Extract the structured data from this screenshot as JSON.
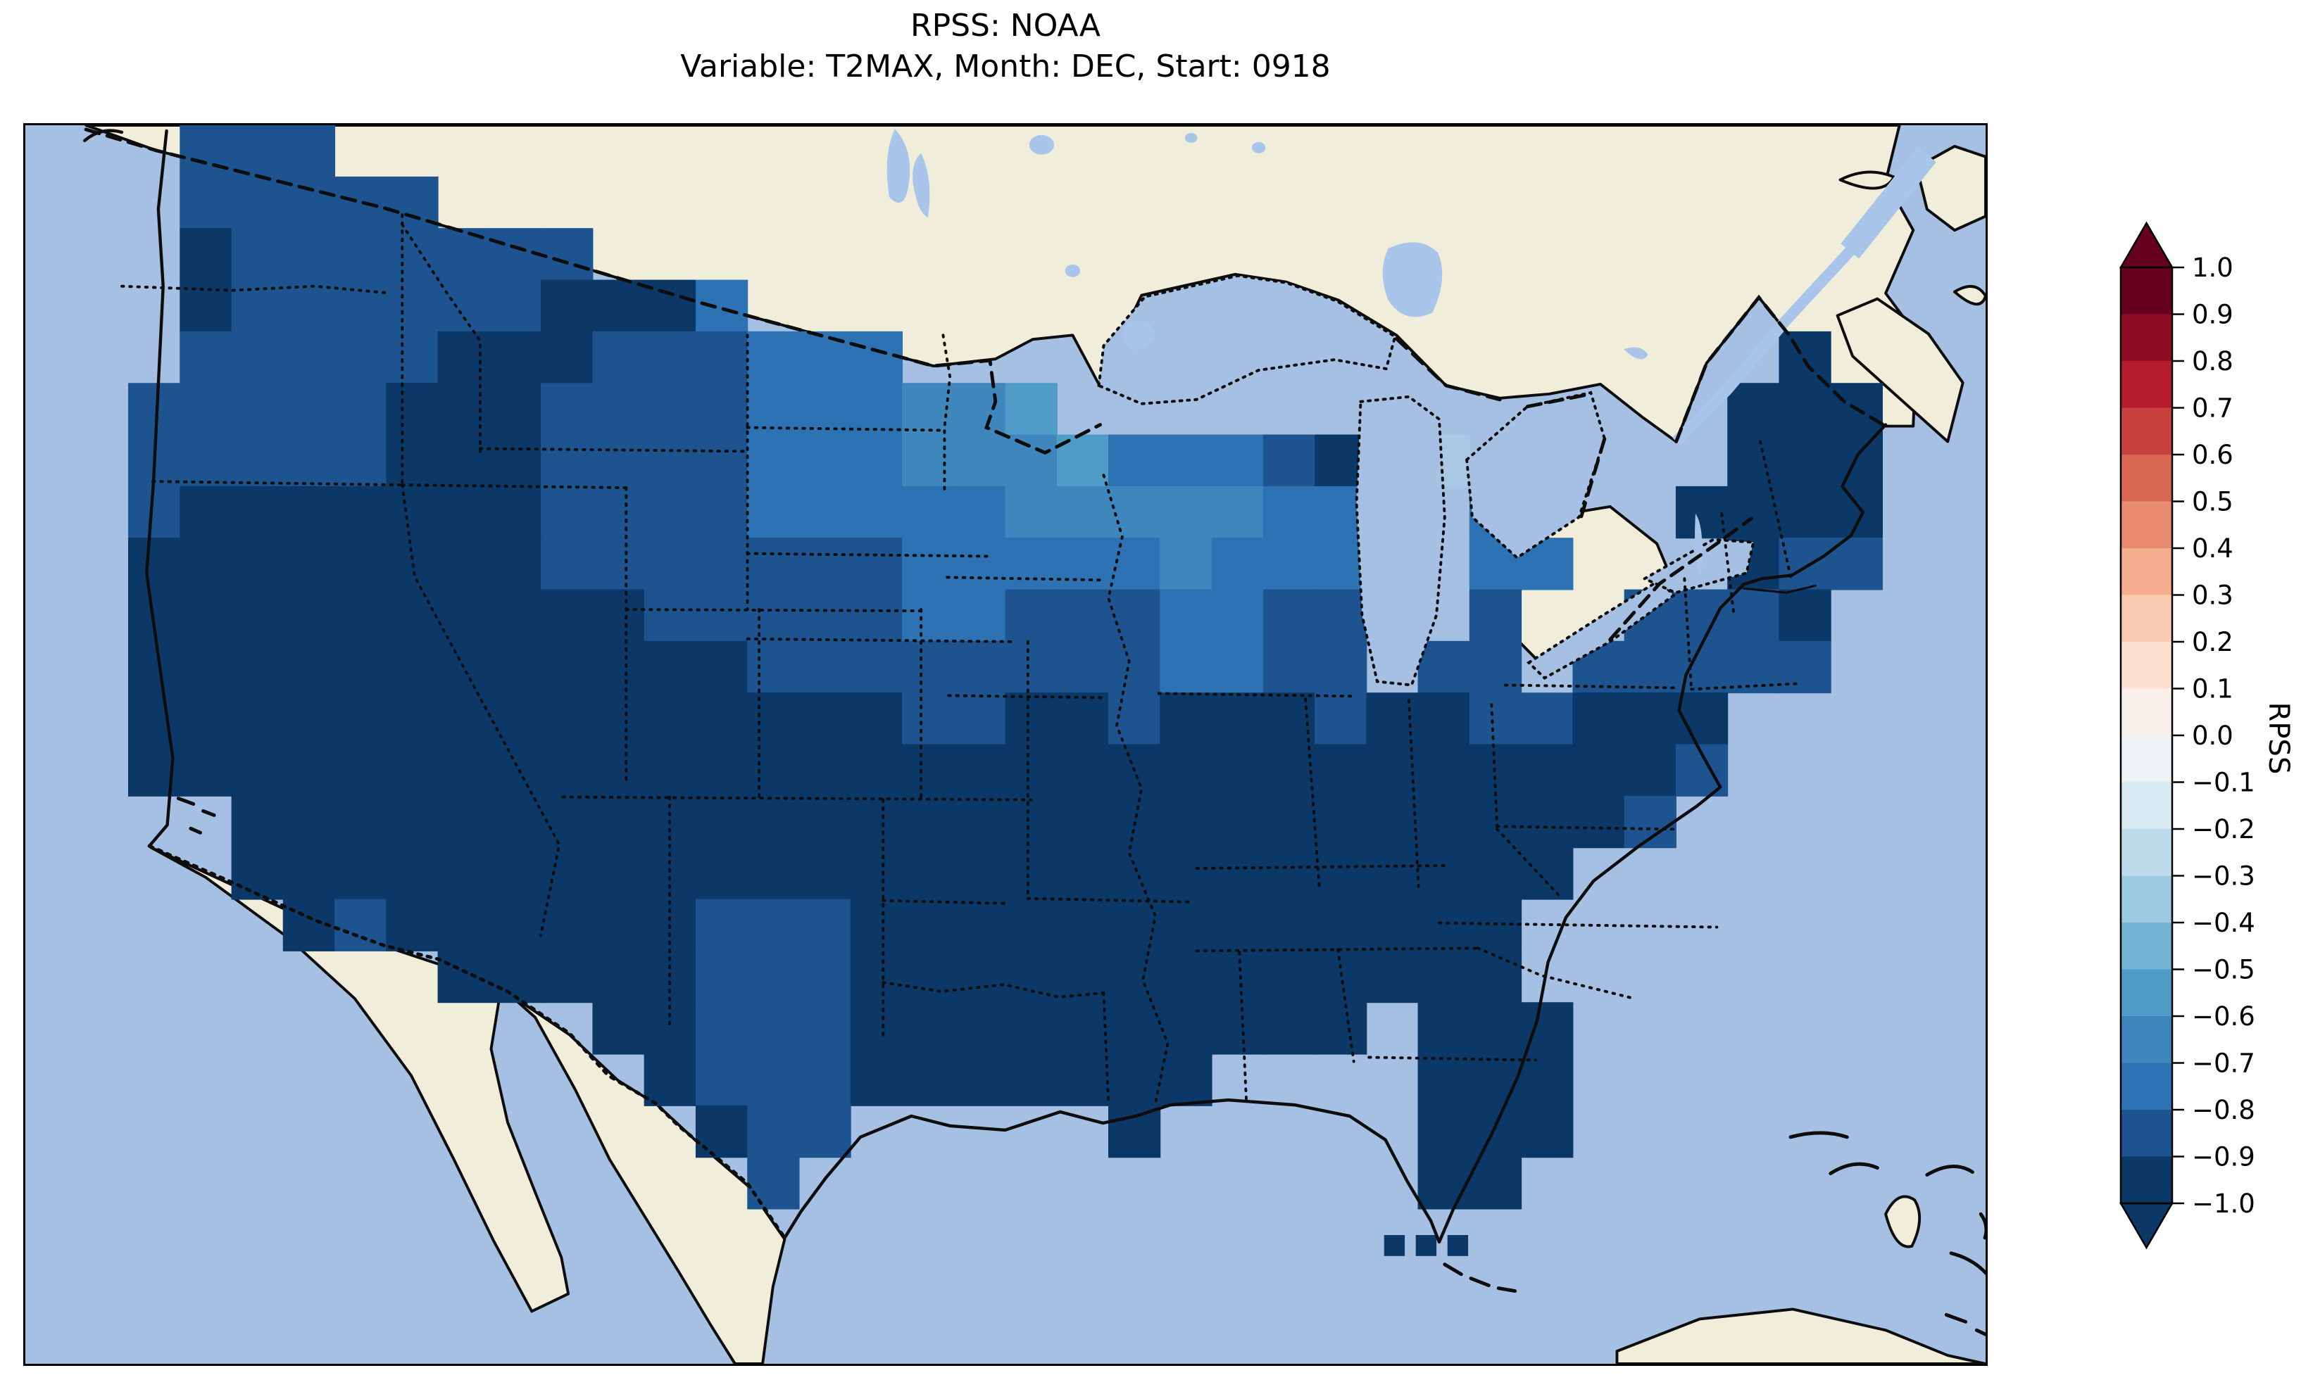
{
  "figure": {
    "title_line1": "RPSS: NOAA",
    "title_line2": "Variable: T2MAX, Month: DEC, Start: 0918"
  },
  "colorbar": {
    "label": "RPSS",
    "tick_labels": [
      "1.0",
      "0.9",
      "0.8",
      "0.7",
      "0.6",
      "0.5",
      "0.4",
      "0.3",
      "0.2",
      "0.1",
      "0.0",
      "−0.1",
      "−0.2",
      "−0.3",
      "−0.4",
      "−0.5",
      "−0.6",
      "−0.7",
      "−0.8",
      "−0.9",
      "−1.0"
    ],
    "segment_colors_top_to_bottom": [
      "#67001f",
      "#8f0d25",
      "#b41c2d",
      "#c7423f",
      "#d96853",
      "#e98b6e",
      "#f5ae8d",
      "#facab1",
      "#fce1d1",
      "#f9f0eb",
      "#edf2f5",
      "#d9e9f2",
      "#bddbea",
      "#9ccae1",
      "#75b3d4",
      "#4f9cc9",
      "#3f86bd",
      "#2d72b3",
      "#1d548f",
      "#0b3866"
    ],
    "over_arrow_color": "#67001f",
    "under_arrow_color": "#0b3866"
  },
  "map": {
    "ocean_color": "#a5c0e3",
    "land_color": "#f0eedb",
    "coastline_color": "#0d0d0d",
    "inland_water_color": "#a9c6ea"
  },
  "chart_data": {
    "type": "heatmap",
    "title": "RPSS: NOAA",
    "subtitle": "Variable: T2MAX, Month: DEC, Start: 0918",
    "colorbar_label": "RPSS",
    "value_range": [
      -1.0,
      1.0
    ],
    "bin_edges_top_to_bottom": [
      1.0,
      0.9,
      0.8,
      0.7,
      0.6,
      0.5,
      0.4,
      0.3,
      0.2,
      0.1,
      0.0,
      -0.1,
      -0.2,
      -0.3,
      -0.4,
      -0.5,
      -0.6,
      -0.7,
      -0.8,
      -0.9,
      -1.0
    ],
    "legend_position": "vertical colorbar at right with out-of-range arrow caps",
    "region": "Continental United States with surrounding Canada, Mexico, Gulf of Mexico, Bahamas and Cuba",
    "grid_note": "Gridded skill-score cells over CONUS only; one character per cell, '.' = no data (ocean / non-US land)",
    "palette": {
      "a": {
        "color": "#0b3866",
        "rpss_range": [
          -1.0,
          -0.9
        ]
      },
      "b": {
        "color": "#1d548f",
        "rpss_range": [
          -0.9,
          -0.8
        ]
      },
      "c": {
        "color": "#2d72b3",
        "rpss_range": [
          -0.8,
          -0.7
        ]
      },
      "d": {
        "color": "#3f86bd",
        "rpss_range": [
          -0.7,
          -0.6
        ]
      },
      "e": {
        "color": "#4f9cc9",
        "rpss_range": [
          -0.6,
          -0.5
        ]
      },
      "f": {
        "color": "#a9c8e6",
        "rpss_range": [
          -0.3,
          -0.2
        ]
      }
    },
    "grid": {
      "cols": 38,
      "rows": 24,
      "cells": [
        "...bbb................................",
        "...bbbbb..............................",
        "...abbbbbbb...........................",
        "...abbbbbbaaac........................",
        "...bbbbbaaabbbccc.................a...",
        "..bbbbbaaabbbbcccdde.............aaa..",
        "..bbbbbaaabbbbcccdddecccbaff.....aaa..",
        "..baaaaaaabbbbcccccdddddcc..c...aaaa..",
        "..aaaaaaaabbbbbbbcccccdccc..cc...abb..",
        "..aaaaaaaaaabbbbbccbbbccbb..b..bbba...",
        "..aaaaaaaaaaaabbbbbbbbccbb.bb.bbbbb...",
        "..aaaaaaaaaaaaaaabbaabaaabaabbaaa.....",
        "..aaaaaaaaaaaaaaaaaaaaaaaaaaaaaab.....",
        "....aaaaaaaaaaaaaaaaaaaaaaaaaaab......",
        "....aaaaaaaaaaaaaaaaaaaaaaaaaa........",
        ".....abaaaaaabbbaaaaaaaaaaaaa.........",
        "........aaaaabbbaaaaaaaaaaaaa.........",
        "...........aabbbaaaaaaaaaa.aaa........",
        "............abbbaaaaaaa....aaa........",
        ".............abb.....a.....aaa........",
        "..............b............aa.........",
        "......................................",
        "......................................",
        "......................................"
      ]
    },
    "summary": "RPSS is strongly negative (−1.0 to −0.8, darkest blues) over nearly the entire CONUS. Values are less negative (−0.8 to −0.5, medium blues) across Washington, Montana, the Dakotas, Minnesota, Wisconsin and Michigan, with a few near −0.3 (pale blue) cells around Lake Superior and northern Lake Michigan. No positive (red) RPSS values appear anywhere on the map."
  }
}
